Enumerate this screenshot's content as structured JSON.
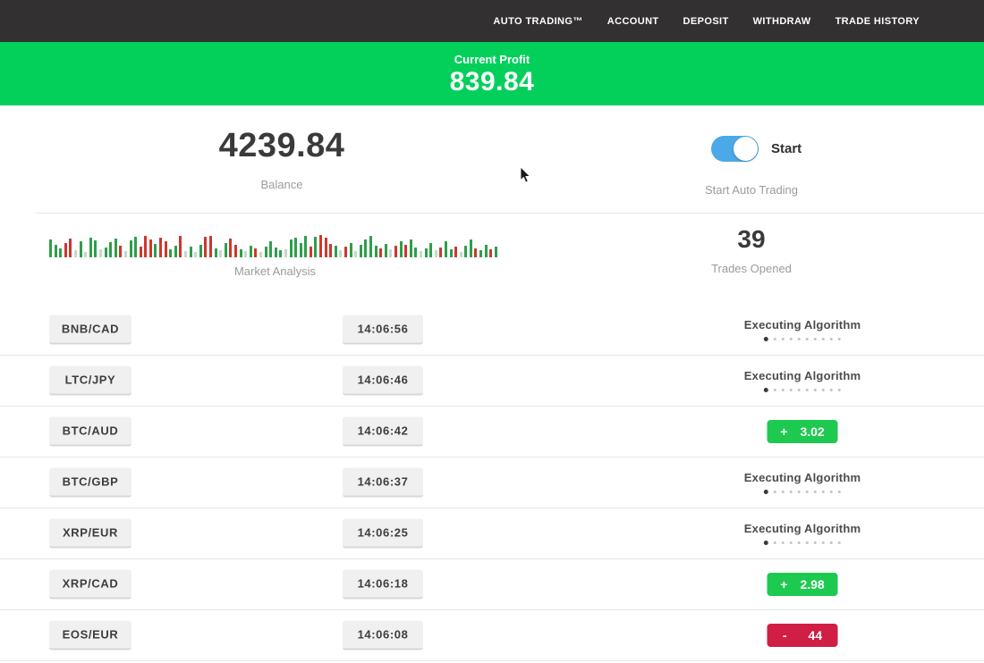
{
  "nav": {
    "items": [
      {
        "label": "AUTO TRADING™"
      },
      {
        "label": "ACCOUNT"
      },
      {
        "label": "DEPOSIT"
      },
      {
        "label": "WITHDRAW"
      },
      {
        "label": "TRADE HISTORY"
      }
    ]
  },
  "profit_banner": {
    "label": "Current Profit",
    "value": "839.84",
    "bg_color": "#02d05b"
  },
  "stats": {
    "balance": {
      "value": "4239.84",
      "label": "Balance"
    },
    "auto_trading": {
      "toggle_label": "Start",
      "label": "Start Auto Trading",
      "toggle_on": true,
      "toggle_color": "#4aa9e6"
    },
    "trades_opened": {
      "value": "39",
      "label": "Trades Opened"
    },
    "market_analysis": {
      "label": "Market Analysis",
      "bar_colors": {
        "g": "#2f9e4b",
        "r": "#ce372d",
        "f": "#c3d9c8"
      },
      "bars": [
        [
          20,
          "g"
        ],
        [
          14,
          "g"
        ],
        [
          10,
          "g"
        ],
        [
          16,
          "r"
        ],
        [
          21,
          "r"
        ],
        [
          8,
          "f"
        ],
        [
          18,
          "g"
        ],
        [
          6,
          "f"
        ],
        [
          22,
          "g"
        ],
        [
          19,
          "g"
        ],
        [
          9,
          "f"
        ],
        [
          11,
          "g"
        ],
        [
          17,
          "g"
        ],
        [
          21,
          "g"
        ],
        [
          13,
          "r"
        ],
        [
          7,
          "f"
        ],
        [
          19,
          "g"
        ],
        [
          23,
          "g"
        ],
        [
          12,
          "r"
        ],
        [
          24,
          "r"
        ],
        [
          20,
          "r"
        ],
        [
          15,
          "g"
        ],
        [
          22,
          "r"
        ],
        [
          18,
          "r"
        ],
        [
          9,
          "g"
        ],
        [
          13,
          "g"
        ],
        [
          24,
          "r"
        ],
        [
          7,
          "f"
        ],
        [
          12,
          "g"
        ],
        [
          6,
          "f"
        ],
        [
          14,
          "g"
        ],
        [
          23,
          "r"
        ],
        [
          24,
          "r"
        ],
        [
          10,
          "g"
        ],
        [
          8,
          "f"
        ],
        [
          16,
          "g"
        ],
        [
          21,
          "r"
        ],
        [
          14,
          "r"
        ],
        [
          9,
          "g"
        ],
        [
          7,
          "f"
        ],
        [
          13,
          "g"
        ],
        [
          10,
          "r"
        ],
        [
          6,
          "f"
        ],
        [
          12,
          "g"
        ],
        [
          18,
          "g"
        ],
        [
          11,
          "g"
        ],
        [
          8,
          "g"
        ],
        [
          9,
          "f"
        ],
        [
          20,
          "g"
        ],
        [
          22,
          "g"
        ],
        [
          16,
          "g"
        ],
        [
          24,
          "g"
        ],
        [
          12,
          "r"
        ],
        [
          23,
          "g"
        ],
        [
          25,
          "r"
        ],
        [
          22,
          "r"
        ],
        [
          15,
          "r"
        ],
        [
          13,
          "g"
        ],
        [
          8,
          "f"
        ],
        [
          12,
          "r"
        ],
        [
          16,
          "g"
        ],
        [
          7,
          "f"
        ],
        [
          14,
          "g"
        ],
        [
          20,
          "g"
        ],
        [
          24,
          "g"
        ],
        [
          13,
          "g"
        ],
        [
          10,
          "r"
        ],
        [
          15,
          "g"
        ],
        [
          9,
          "f"
        ],
        [
          13,
          "r"
        ],
        [
          18,
          "g"
        ],
        [
          14,
          "r"
        ],
        [
          20,
          "g"
        ],
        [
          11,
          "g"
        ],
        [
          7,
          "f"
        ],
        [
          10,
          "g"
        ],
        [
          16,
          "g"
        ],
        [
          8,
          "f"
        ],
        [
          11,
          "r"
        ],
        [
          18,
          "g"
        ],
        [
          9,
          "g"
        ],
        [
          12,
          "r"
        ],
        [
          6,
          "f"
        ],
        [
          13,
          "g"
        ],
        [
          20,
          "g"
        ],
        [
          10,
          "r"
        ],
        [
          8,
          "g"
        ],
        [
          14,
          "g"
        ],
        [
          9,
          "r"
        ],
        [
          12,
          "g"
        ]
      ]
    }
  },
  "status_defaults": {
    "executing_label": "Executing Algorithm",
    "dots_total": 10,
    "dots_active": 1
  },
  "trades": [
    {
      "pair": "BNB/CAD",
      "time": "14:06:56",
      "status": "executing"
    },
    {
      "pair": "LTC/JPY",
      "time": "14:06:46",
      "status": "executing"
    },
    {
      "pair": "BTC/AUD",
      "time": "14:06:42",
      "status": "profit",
      "sign": "+",
      "amount": "3.02"
    },
    {
      "pair": "BTC/GBP",
      "time": "14:06:37",
      "status": "executing"
    },
    {
      "pair": "XRP/EUR",
      "time": "14:06:25",
      "status": "executing"
    },
    {
      "pair": "XRP/CAD",
      "time": "14:06:18",
      "status": "profit",
      "sign": "+",
      "amount": "2.98"
    },
    {
      "pair": "EOS/EUR",
      "time": "14:06:08",
      "status": "loss",
      "sign": "-",
      "amount": "44"
    }
  ],
  "colors": {
    "nav_bg": "#323030",
    "profit_badge": "#1ec950",
    "loss_badge": "#d01e44",
    "divider": "#e7e7e7"
  }
}
